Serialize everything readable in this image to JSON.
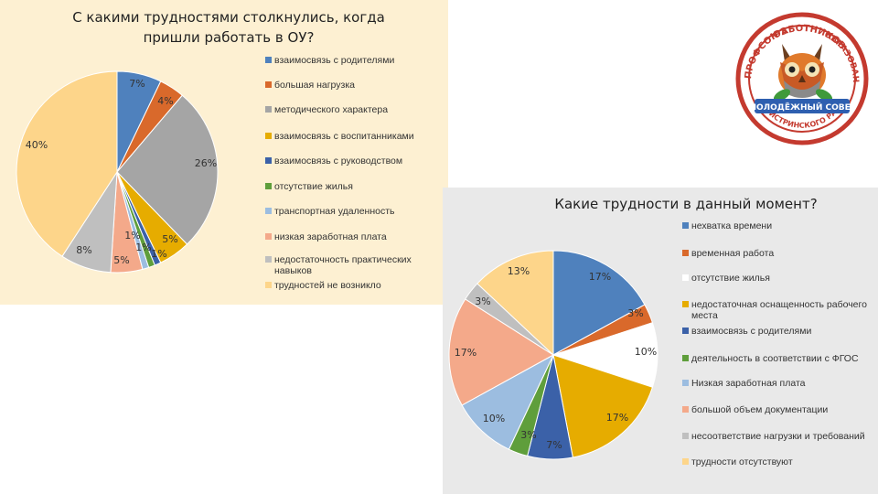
{
  "chart_data": [
    {
      "type": "pie",
      "title": "С какими трудностями столкнулись, когда пришли работать в ОУ?",
      "categories": [
        "взаимосвязь с родителями",
        "большая нагрузка",
        "методического характера",
        "взаимосвязь с воспитанниками",
        "взаимосвязь с руководством",
        "отсутствие жилья",
        "транспортная удаленность",
        "низкая заработная плата",
        "недостаточность практических навыков",
        "трудностей не возникло"
      ],
      "values": [
        7,
        4,
        26,
        5,
        1,
        1,
        1,
        5,
        8,
        40
      ],
      "labels": [
        "7%",
        "4%",
        "26%",
        "5%",
        "1%",
        "1%",
        "1%",
        "5%",
        "8%",
        "40%"
      ],
      "colors": [
        "#4f81bd",
        "#d9692b",
        "#a5a5a5",
        "#e6ac00",
        "#3b61a8",
        "#5f9e3b",
        "#9cbde0",
        "#f4a98a",
        "#bfbfbf",
        "#fdd58a"
      ],
      "legend_position": "right"
    },
    {
      "type": "pie",
      "title": "Какие трудности в данный момент?",
      "categories": [
        "нехватка времени",
        "временная работа",
        "отсутствие жилья",
        "недостаточная оснащенность рабочего места",
        "взаимосвязь с родителями",
        "деятельность в соответствии с ФГОС",
        "Низкая заработная плата",
        "большой объем документации",
        "несоответствие нагрузки и требований",
        "трудности отсутствуют"
      ],
      "values": [
        17,
        3,
        10,
        17,
        7,
        3,
        10,
        17,
        3,
        13
      ],
      "labels": [
        "17%",
        "3%",
        "10%",
        "17%",
        "7%",
        "3%",
        "10%",
        "17%",
        "3%",
        "13%"
      ],
      "colors": [
        "#4f81bd",
        "#d9692b",
        "#ffffff",
        "#e6ac00",
        "#3b61a8",
        "#5f9e3b",
        "#9cbde0",
        "#f4a98a",
        "#bfbfbf",
        "#fdd58a"
      ],
      "legend_position": "right"
    }
  ],
  "logo": {
    "text_top_left": "ПРОФСОЮЗ",
    "text_top": "РАБОТНИКОВ",
    "text_right": "ОБРАЗОВАНИЯ",
    "text_ribbon": "МОЛОДЁЖНЫЙ СОВЕТ",
    "text_bottom": "ИСТРИНСКОГО РАЙОНА"
  }
}
